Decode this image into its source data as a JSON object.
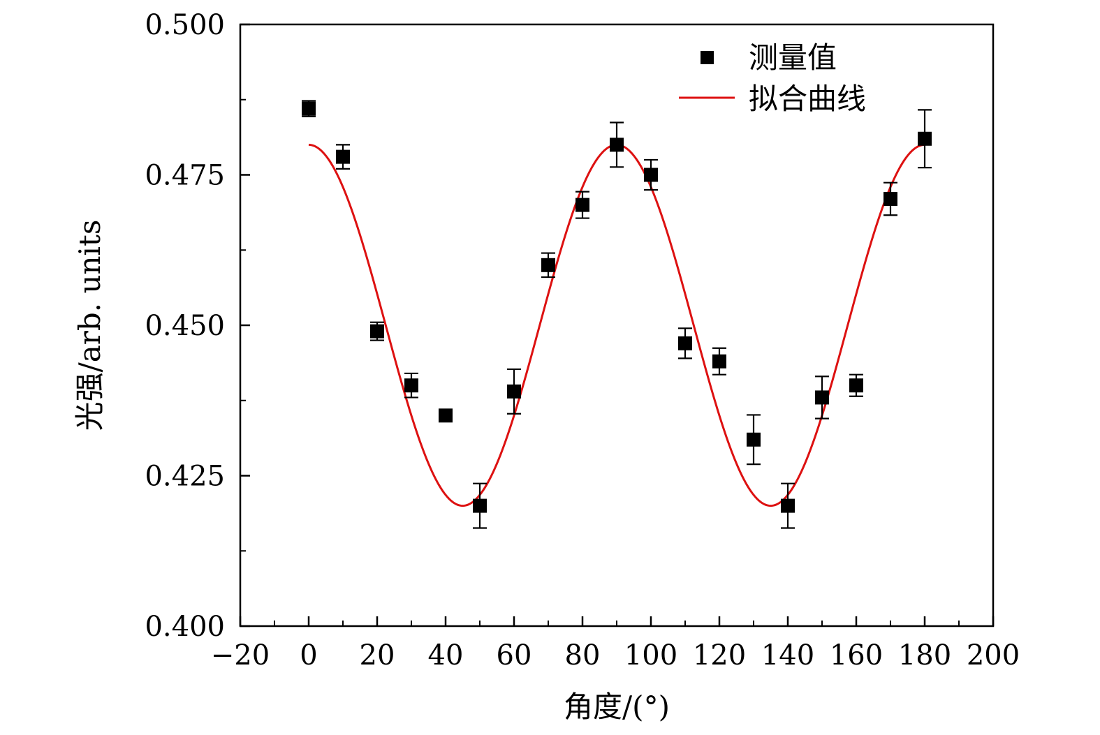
{
  "chart_data": {
    "type": "scatter",
    "title": "",
    "xlabel": "角度/(°)",
    "ylabel": "光强/arb. units",
    "xlim": [
      -20,
      200
    ],
    "ylim": [
      0.4,
      0.5
    ],
    "x_ticks": [
      -20,
      0,
      20,
      40,
      60,
      80,
      100,
      120,
      140,
      160,
      180,
      200
    ],
    "x_tick_labels": [
      "−20",
      "0",
      "20",
      "40",
      "60",
      "80",
      "100",
      "120",
      "140",
      "160",
      "180",
      "200"
    ],
    "y_ticks": [
      0.4,
      0.425,
      0.45,
      0.475,
      0.5
    ],
    "y_tick_labels": [
      "0.400",
      "0.425",
      "0.450",
      "0.475",
      "0.500"
    ],
    "grid": false,
    "legend_position": "top-right",
    "series": [
      {
        "name": "测量值",
        "type": "scatter",
        "marker": "square",
        "color": "#000000",
        "x": [
          0,
          10,
          20,
          30,
          40,
          50,
          60,
          70,
          80,
          90,
          100,
          110,
          120,
          130,
          140,
          150,
          160,
          170,
          180
        ],
        "y": [
          0.486,
          0.478,
          0.449,
          0.44,
          0.435,
          0.42,
          0.439,
          0.46,
          0.47,
          0.48,
          0.475,
          0.447,
          0.444,
          0.431,
          0.42,
          0.438,
          0.44,
          0.471,
          0.481
        ],
        "yerr": [
          0.0013,
          0.002,
          0.0015,
          0.002,
          0.0008,
          0.0037,
          0.0037,
          0.002,
          0.0022,
          0.0037,
          0.0025,
          0.0025,
          0.0022,
          0.0041,
          0.0037,
          0.0035,
          0.0018,
          0.0027,
          0.0048
        ]
      },
      {
        "name": "拟合曲线",
        "type": "line",
        "color": "#dd1111",
        "x_range": [
          0,
          180
        ],
        "model": "0.45 + 0.03*cos(4*x)",
        "min_at": [
          45,
          135
        ],
        "max_at": [
          0,
          90,
          180
        ]
      }
    ]
  }
}
